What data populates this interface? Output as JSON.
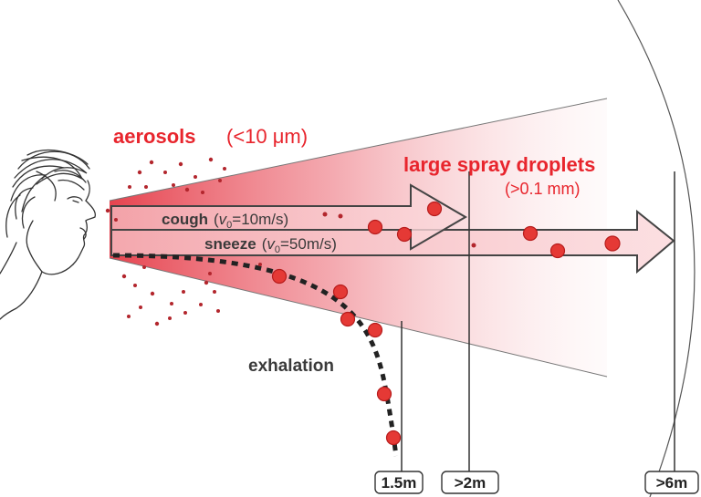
{
  "labels": {
    "aerosols": "aerosols",
    "aerosols_size": "(<10 μm)",
    "large_droplets": "large spray droplets",
    "large_droplets_size": "(>0.1 mm)",
    "cough_word": "cough",
    "cough_v": "v",
    "cough_sub": "0",
    "cough_speed": "=10m/s)",
    "sneeze_word": "sneeze",
    "sneeze_v": "v",
    "sneeze_sub": "0",
    "sneeze_speed": "=50m/s)",
    "exhalation": "exhalation"
  },
  "distances": [
    "1.5m",
    ">2m",
    ">6m"
  ],
  "colors": {
    "accent_red": "#e8252d",
    "droplet_fill": "#e53935",
    "droplet_stroke": "#b71c1c",
    "small_droplet": "#b3262d",
    "cone_red": "#e53945",
    "arrow_fill": "#f7c2c6",
    "text_dark": "#3a3a3a"
  },
  "icons": {
    "face": "human-face-profile-icon"
  }
}
